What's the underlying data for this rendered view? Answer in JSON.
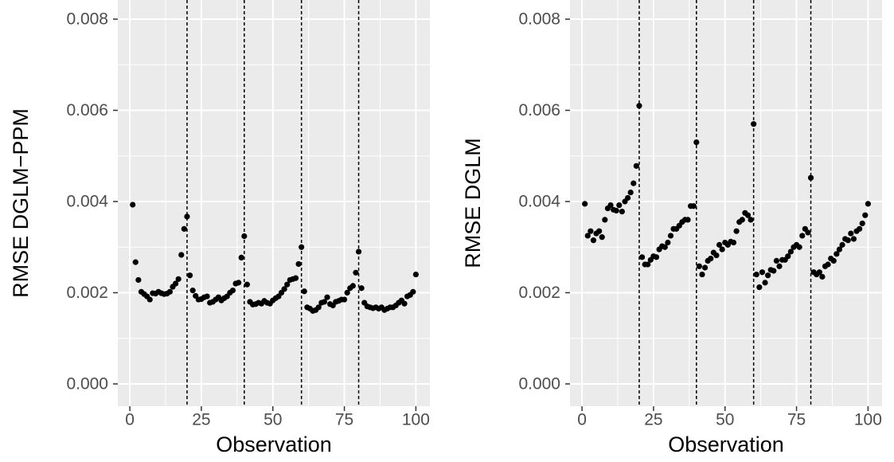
{
  "chart_data": [
    {
      "type": "scatter",
      "ylabel": "RMSE DGLM−PPM",
      "xlabel": "Observation",
      "color": "#000000",
      "x": [
        1,
        2,
        3,
        4,
        5,
        6,
        7,
        8,
        9,
        10,
        11,
        12,
        13,
        14,
        15,
        16,
        17,
        18,
        19,
        20,
        21,
        22,
        23,
        24,
        25,
        26,
        27,
        28,
        29,
        30,
        31,
        32,
        33,
        34,
        35,
        36,
        37,
        38,
        39,
        40,
        41,
        42,
        43,
        44,
        45,
        46,
        47,
        48,
        49,
        50,
        51,
        52,
        53,
        54,
        55,
        56,
        57,
        58,
        59,
        60,
        61,
        62,
        63,
        64,
        65,
        66,
        67,
        68,
        69,
        70,
        71,
        72,
        73,
        74,
        75,
        76,
        77,
        78,
        79,
        80,
        81,
        82,
        83,
        84,
        85,
        86,
        87,
        88,
        89,
        90,
        91,
        92,
        93,
        94,
        95,
        96,
        97,
        98,
        99,
        100
      ],
      "values": [
        0.00393,
        0.00267,
        0.00228,
        0.00202,
        0.00197,
        0.00192,
        0.00185,
        0.00199,
        0.00198,
        0.00202,
        0.00199,
        0.00197,
        0.00198,
        0.00202,
        0.00213,
        0.0022,
        0.0023,
        0.00283,
        0.0034,
        0.00367,
        0.00238,
        0.00205,
        0.00193,
        0.00185,
        0.00186,
        0.0019,
        0.00192,
        0.00178,
        0.0018,
        0.00185,
        0.0019,
        0.00183,
        0.00188,
        0.00192,
        0.002,
        0.00205,
        0.0022,
        0.00222,
        0.00277,
        0.00324,
        0.00218,
        0.0018,
        0.00174,
        0.00175,
        0.00178,
        0.00176,
        0.00182,
        0.00178,
        0.00176,
        0.00183,
        0.00188,
        0.00192,
        0.002,
        0.00208,
        0.00218,
        0.00228,
        0.0023,
        0.00232,
        0.00263,
        0.003,
        0.00203,
        0.00168,
        0.00165,
        0.0016,
        0.00162,
        0.00168,
        0.00178,
        0.0018,
        0.0019,
        0.00175,
        0.00172,
        0.0018,
        0.00182,
        0.00185,
        0.00185,
        0.002,
        0.0021,
        0.00215,
        0.00244,
        0.0029,
        0.0021,
        0.00178,
        0.0017,
        0.00168,
        0.00166,
        0.00168,
        0.00165,
        0.00168,
        0.00162,
        0.00165,
        0.00168,
        0.00168,
        0.00172,
        0.00178,
        0.00183,
        0.00176,
        0.00192,
        0.00195,
        0.00202,
        0.0024
      ],
      "xlim": [
        -4.2,
        104.9
      ],
      "ylim": [
        -0.00049,
        0.00842
      ],
      "xticks": [
        0,
        25,
        50,
        75,
        100
      ],
      "yticks": [
        {
          "value": 0,
          "label": "0.000"
        },
        {
          "value": 0.002,
          "label": "0.002"
        },
        {
          "value": 0.004,
          "label": "0.004"
        },
        {
          "value": 0.006,
          "label": "0.006"
        },
        {
          "value": 0.008,
          "label": "0.008"
        }
      ],
      "vlines": [
        20,
        40,
        60,
        80
      ],
      "grid": true
    },
    {
      "type": "scatter",
      "ylabel": "RMSE DGLM",
      "xlabel": "Observation",
      "color": "#000000",
      "x": [
        1,
        2,
        3,
        4,
        5,
        6,
        7,
        8,
        9,
        10,
        11,
        12,
        13,
        14,
        15,
        16,
        17,
        18,
        19,
        20,
        21,
        22,
        23,
        24,
        25,
        26,
        27,
        28,
        29,
        30,
        31,
        32,
        33,
        34,
        35,
        36,
        37,
        38,
        39,
        40,
        41,
        42,
        43,
        44,
        45,
        46,
        47,
        48,
        49,
        50,
        51,
        52,
        53,
        54,
        55,
        56,
        57,
        58,
        59,
        60,
        61,
        62,
        63,
        64,
        65,
        66,
        67,
        68,
        69,
        70,
        71,
        72,
        73,
        74,
        75,
        76,
        77,
        78,
        79,
        80,
        81,
        82,
        83,
        84,
        85,
        86,
        87,
        88,
        89,
        90,
        91,
        92,
        93,
        94,
        95,
        96,
        97,
        98,
        99,
        100
      ],
      "values": [
        0.00395,
        0.00325,
        0.00335,
        0.00315,
        0.0033,
        0.00335,
        0.00322,
        0.0036,
        0.00385,
        0.00392,
        0.00382,
        0.0038,
        0.00392,
        0.00378,
        0.004,
        0.00408,
        0.0042,
        0.0044,
        0.00478,
        0.0061,
        0.00278,
        0.00262,
        0.00262,
        0.00272,
        0.0028,
        0.00278,
        0.00295,
        0.00302,
        0.003,
        0.0031,
        0.00325,
        0.0034,
        0.0034,
        0.00347,
        0.00355,
        0.0036,
        0.0036,
        0.0039,
        0.0039,
        0.0053,
        0.00258,
        0.0024,
        0.00255,
        0.0027,
        0.00275,
        0.00288,
        0.00282,
        0.00305,
        0.00295,
        0.0031,
        0.00305,
        0.00312,
        0.0031,
        0.00335,
        0.00355,
        0.0036,
        0.00375,
        0.0037,
        0.0036,
        0.0057,
        0.0024,
        0.00212,
        0.00245,
        0.00222,
        0.00238,
        0.0025,
        0.00248,
        0.0027,
        0.00258,
        0.00272,
        0.00272,
        0.0028,
        0.0029,
        0.003,
        0.00305,
        0.003,
        0.00325,
        0.0034,
        0.00332,
        0.00452,
        0.00245,
        0.0024,
        0.00245,
        0.00235,
        0.00258,
        0.00262,
        0.00275,
        0.0027,
        0.00285,
        0.00295,
        0.00305,
        0.00318,
        0.00315,
        0.0033,
        0.00318,
        0.00335,
        0.0034,
        0.00352,
        0.0037,
        0.00395
      ],
      "xlim": [
        -4.2,
        104.9
      ],
      "ylim": [
        -0.00049,
        0.00842
      ],
      "xticks": [
        0,
        25,
        50,
        75,
        100
      ],
      "yticks": [
        {
          "value": 0,
          "label": "0.000"
        },
        {
          "value": 0.002,
          "label": "0.002"
        },
        {
          "value": 0.004,
          "label": "0.004"
        },
        {
          "value": 0.006,
          "label": "0.006"
        },
        {
          "value": 0.008,
          "label": "0.008"
        }
      ],
      "vlines": [
        20,
        40,
        60,
        80
      ],
      "grid": true
    }
  ]
}
